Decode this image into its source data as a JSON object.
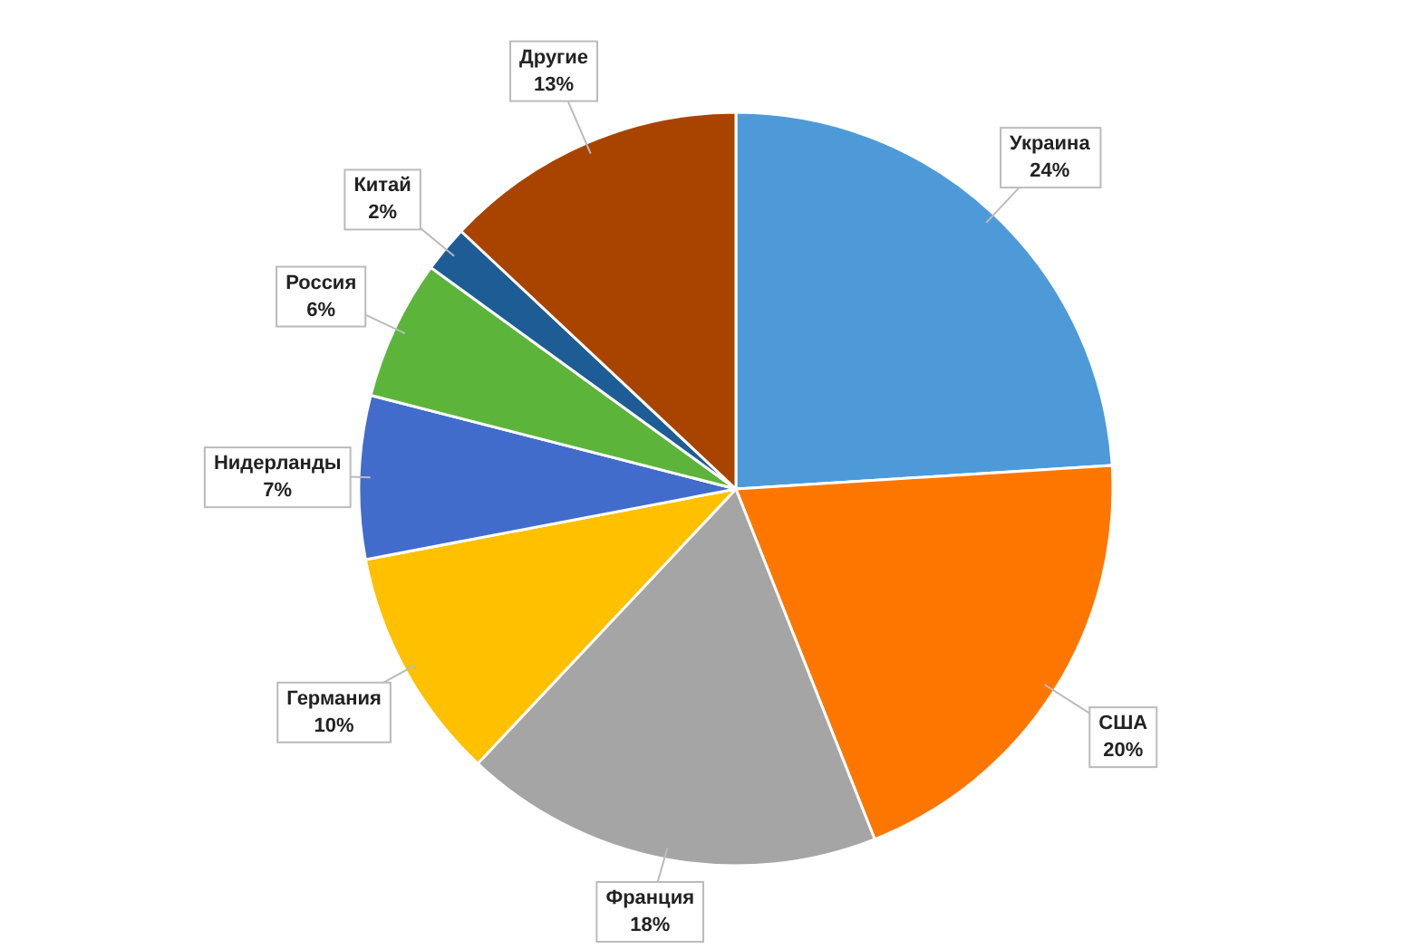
{
  "chart_data": {
    "type": "pie",
    "categories": [
      "Украина",
      "США",
      "Франция",
      "Германия",
      "Нидерланды",
      "Россия",
      "Китай",
      "Другие"
    ],
    "values": [
      24,
      20,
      18,
      10,
      7,
      6,
      2,
      13
    ],
    "colors": [
      "#4e9ad9",
      "#fd7700",
      "#a5a5a5",
      "#ffc000",
      "#416ccc",
      "#5cb53a",
      "#1e5c95",
      "#a84300"
    ],
    "value_labels": [
      "24%",
      "20%",
      "18%",
      "10%",
      "7%",
      "6%",
      "2%",
      "13%"
    ]
  }
}
